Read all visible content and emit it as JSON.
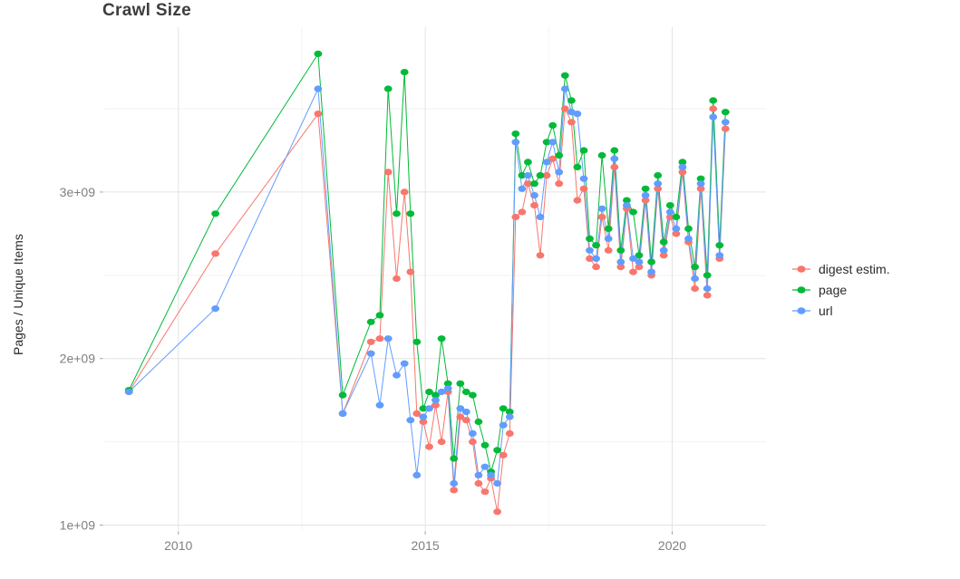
{
  "title": "Crawl Size",
  "ylabel": "Pages / Unique Items",
  "legend": {
    "items": [
      {
        "label": "digest estim.",
        "color": "#F8766D"
      },
      {
        "label": "page",
        "color": "#00BA38"
      },
      {
        "label": "url",
        "color": "#619CFF"
      }
    ]
  },
  "chart_data": {
    "type": "line",
    "title": "Crawl Size",
    "xlabel": "",
    "ylabel": "Pages / Unique Items",
    "y_unit": "pages (values in billions, i.e. ×1e9)",
    "grid": true,
    "legend_position": "right",
    "xlim": [
      2008.5,
      2021.9
    ],
    "ylim": [
      0.97,
      3.99
    ],
    "x_ticks": [
      {
        "value": 2010,
        "label": "2010"
      },
      {
        "value": 2015,
        "label": "2015"
      },
      {
        "value": 2020,
        "label": "2020"
      }
    ],
    "x_minor": [
      2012.5,
      2017.5
    ],
    "y_ticks": [
      {
        "value": 1,
        "label": "1e+09"
      },
      {
        "value": 2,
        "label": "2e+09"
      },
      {
        "value": 3,
        "label": "3e+09"
      }
    ],
    "y_minor": [
      1.5,
      2.5,
      3.5
    ],
    "x": [
      2009.0,
      2010.75,
      2012.83,
      2013.33,
      2013.9,
      2014.08,
      2014.25,
      2014.42,
      2014.58,
      2014.7,
      2014.83,
      2014.96,
      2015.08,
      2015.21,
      2015.33,
      2015.46,
      2015.58,
      2015.71,
      2015.83,
      2015.96,
      2016.08,
      2016.21,
      2016.33,
      2016.46,
      2016.58,
      2016.71,
      2016.83,
      2016.96,
      2017.08,
      2017.21,
      2017.33,
      2017.46,
      2017.58,
      2017.71,
      2017.83,
      2017.96,
      2018.08,
      2018.21,
      2018.33,
      2018.46,
      2018.58,
      2018.71,
      2018.83,
      2018.96,
      2019.08,
      2019.21,
      2019.33,
      2019.46,
      2019.58,
      2019.71,
      2019.83,
      2019.96,
      2020.08,
      2020.21,
      2020.33,
      2020.46,
      2020.58,
      2020.71,
      2020.83,
      2020.96,
      2021.08
    ],
    "series": [
      {
        "name": "digest estim.",
        "color": "#F8766D",
        "values": [
          1.8,
          2.63,
          3.47,
          1.67,
          2.1,
          2.12,
          3.12,
          2.48,
          3.0,
          2.52,
          1.67,
          1.62,
          1.47,
          1.72,
          1.5,
          1.8,
          1.21,
          1.65,
          1.63,
          1.5,
          1.25,
          1.2,
          1.28,
          1.08,
          1.42,
          1.55,
          2.85,
          2.88,
          3.05,
          2.92,
          2.62,
          3.1,
          3.2,
          3.05,
          3.5,
          3.42,
          2.95,
          3.02,
          2.6,
          2.55,
          2.85,
          2.65,
          3.15,
          2.55,
          2.9,
          2.52,
          2.55,
          2.95,
          2.5,
          3.02,
          2.62,
          2.85,
          2.75,
          3.12,
          2.7,
          2.42,
          3.02,
          2.38,
          3.5,
          2.6,
          3.38
        ]
      },
      {
        "name": "page",
        "color": "#00BA38",
        "values": [
          1.81,
          2.87,
          3.83,
          1.78,
          2.22,
          2.26,
          3.62,
          2.87,
          3.72,
          2.87,
          2.1,
          1.7,
          1.8,
          1.78,
          2.12,
          1.85,
          1.4,
          1.85,
          1.8,
          1.78,
          1.62,
          1.48,
          1.32,
          1.45,
          1.7,
          1.68,
          3.35,
          3.1,
          3.18,
          3.05,
          3.1,
          3.3,
          3.4,
          3.22,
          3.7,
          3.55,
          3.15,
          3.25,
          2.72,
          2.68,
          3.22,
          2.78,
          3.25,
          2.65,
          2.95,
          2.88,
          2.62,
          3.02,
          2.58,
          3.1,
          2.7,
          2.92,
          2.85,
          3.18,
          2.78,
          2.55,
          3.08,
          2.5,
          3.55,
          2.68,
          3.48
        ]
      },
      {
        "name": "url",
        "color": "#619CFF",
        "values": [
          1.8,
          2.3,
          3.62,
          1.67,
          2.03,
          1.72,
          2.12,
          1.9,
          1.97,
          1.63,
          1.3,
          1.65,
          1.7,
          1.75,
          1.8,
          1.82,
          1.25,
          1.7,
          1.68,
          1.55,
          1.3,
          1.35,
          1.3,
          1.25,
          1.6,
          1.65,
          3.3,
          3.02,
          3.1,
          2.98,
          2.85,
          3.18,
          3.3,
          3.12,
          3.62,
          3.48,
          3.47,
          3.08,
          2.65,
          2.6,
          2.9,
          2.72,
          3.2,
          2.58,
          2.92,
          2.6,
          2.58,
          2.98,
          2.52,
          3.05,
          2.65,
          2.88,
          2.78,
          3.15,
          2.72,
          2.48,
          3.05,
          2.42,
          3.45,
          2.62,
          3.42
        ]
      }
    ]
  }
}
